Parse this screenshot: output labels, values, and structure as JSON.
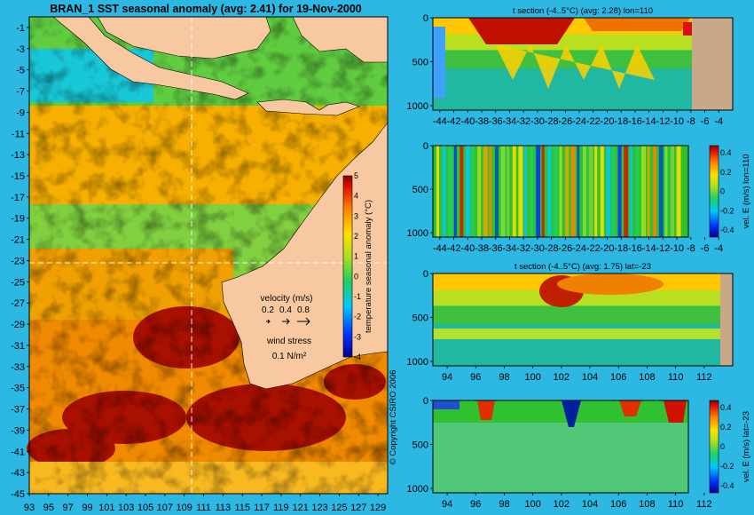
{
  "chart_data": [
    {
      "type": "heatmap",
      "title": "BRAN_1 SST seasonal anomaly (avg: 2.41) for 19-Nov-2000",
      "x_ticks": [
        "93",
        "95",
        "97",
        "99",
        "101",
        "103",
        "105",
        "107",
        "109",
        "111",
        "113",
        "115",
        "117",
        "119",
        "121",
        "123",
        "125",
        "127",
        "129"
      ],
      "y_ticks": [
        "-1",
        "-3",
        "-5",
        "-7",
        "-9",
        "-11",
        "-13",
        "-15",
        "-17",
        "-19",
        "-21",
        "-23",
        "-25",
        "-27",
        "-29",
        "-31",
        "-33",
        "-35",
        "-37",
        "-39",
        "-41",
        "-43",
        "-45"
      ],
      "xlim": [
        93,
        130
      ],
      "ylim": [
        -45,
        0
      ],
      "colorbar": {
        "label": "temperature seasonal anomaly (°C)",
        "ticks": [
          "5",
          "4",
          "3",
          "2",
          "1",
          "0",
          "-1",
          "-2",
          "-3",
          "-4"
        ],
        "range": [
          -4,
          5
        ]
      },
      "crosshair": {
        "lon": 110,
        "lat": -23
      },
      "legend": {
        "velocity_title": "velocity (m/s)",
        "velocity_values": [
          "0.2",
          "0.4",
          "0.8"
        ],
        "wind_title": "wind stress",
        "wind_value": "0.1 N/m²"
      },
      "copyright": "© Copyright CSIRO 2006"
    },
    {
      "type": "heatmap",
      "title": "t section (-4..5°C) (avg: 2.28) lon=110",
      "x_ticks": [
        "-44",
        "-42",
        "-40",
        "-38",
        "-36",
        "-34",
        "-32",
        "-30",
        "-28",
        "-26",
        "-24",
        "-22",
        "-20",
        "-18",
        "-16",
        "-14",
        "-12",
        "-10",
        "-8",
        "-6",
        "-4"
      ],
      "y_ticks": [
        "0",
        "500",
        "1000"
      ],
      "xlim": [
        -45,
        -2
      ],
      "ylim": [
        1050,
        0
      ]
    },
    {
      "type": "heatmap",
      "x_ticks": [
        "-44",
        "-42",
        "-40",
        "-38",
        "-36",
        "-34",
        "-32",
        "-30",
        "-28",
        "-26",
        "-24",
        "-22",
        "-20",
        "-18",
        "-16",
        "-14",
        "-12",
        "-10",
        "-8",
        "-6",
        "-4"
      ],
      "y_ticks": [
        "0",
        "500",
        "1000"
      ],
      "xlim": [
        -45,
        -2
      ],
      "ylim": [
        1050,
        0
      ],
      "colorbar": {
        "label": "vel. E (m/s) lon=110",
        "ticks": [
          "0.4",
          "0.2",
          "0",
          "-0.2",
          "-0.4"
        ]
      }
    },
    {
      "type": "heatmap",
      "title": "t section (-4..5°C) (avg: 1.75) lat=-23",
      "x_ticks": [
        "94",
        "96",
        "98",
        "100",
        "102",
        "104",
        "106",
        "108",
        "110",
        "112"
      ],
      "y_ticks": [
        "0",
        "500",
        "1000"
      ],
      "xlim": [
        93,
        114
      ],
      "ylim": [
        1050,
        0
      ]
    },
    {
      "type": "heatmap",
      "x_ticks": [
        "94",
        "96",
        "98",
        "100",
        "102",
        "104",
        "106",
        "108",
        "110",
        "112"
      ],
      "y_ticks": [
        "0",
        "500",
        "1000"
      ],
      "xlim": [
        93,
        114
      ],
      "ylim": [
        1050,
        0
      ],
      "colorbar": {
        "label": "vel. E (m/s) lat=-23",
        "ticks": [
          "0.4",
          "0.2",
          "0",
          "-0.2",
          "-0.4"
        ]
      }
    }
  ]
}
